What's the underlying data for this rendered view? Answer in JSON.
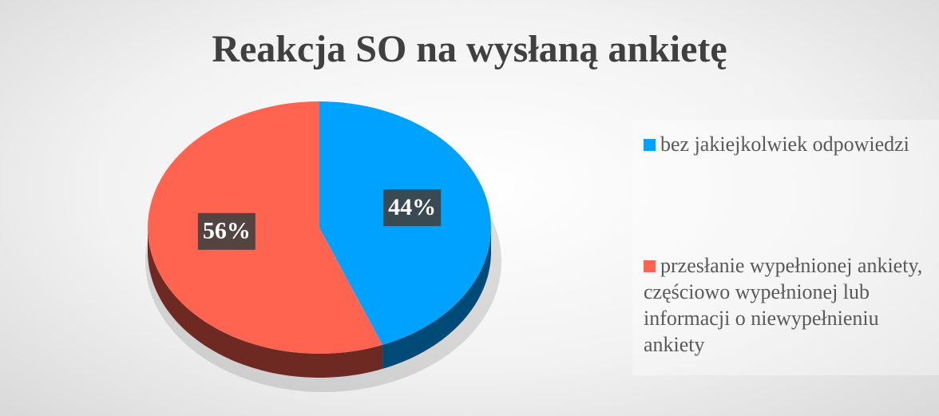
{
  "chart_data": {
    "type": "pie",
    "title": "Reakcja SO na wysłaną ankietę",
    "categories": [
      "bez jakiejkolwiek odpowiedzi",
      "przesłanie wypełnionej ankiety, częściowo wypełnionej lub informacji o niewypełnieniu ankiety"
    ],
    "values": [
      44,
      56
    ],
    "value_labels": [
      "44%",
      "56%"
    ],
    "colors": [
      "#00a2ff",
      "#ff6450"
    ],
    "side_colors": [
      "#004a78",
      "#6e2a22"
    ],
    "legend": "right"
  }
}
